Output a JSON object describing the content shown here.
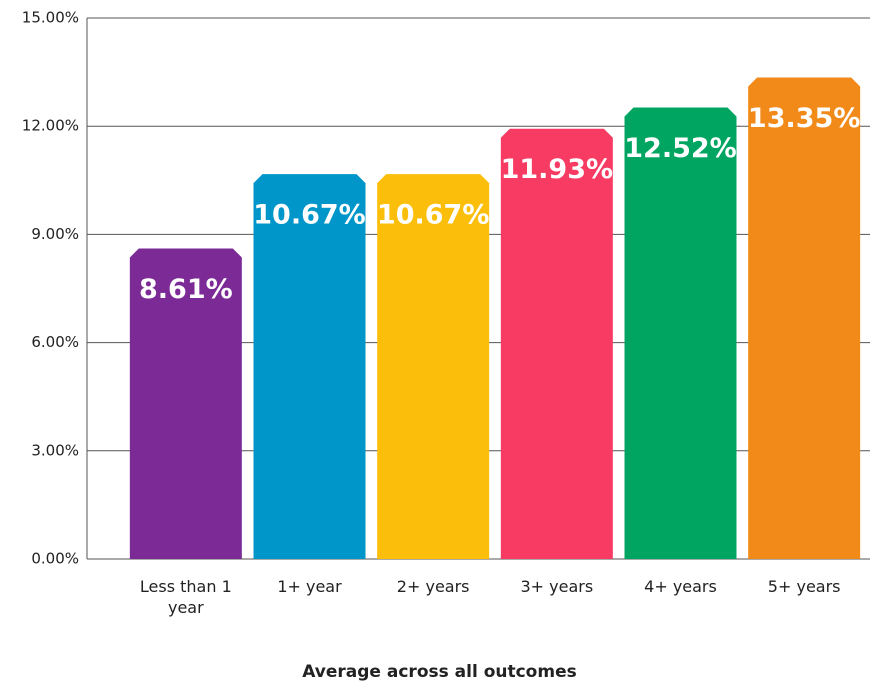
{
  "chart_data": {
    "type": "bar",
    "x_label": "Average across all outcomes",
    "categories": [
      "Less than 1 year",
      "1+ year",
      "2+ years",
      "3+ years",
      "4+ years",
      "5+ years"
    ],
    "values": [
      8.61,
      10.67,
      10.67,
      11.93,
      12.52,
      13.35
    ],
    "value_labels": [
      "8.61%",
      "10.67%",
      "10.67%",
      "11.93%",
      "12.52%",
      "13.35%"
    ],
    "colors": [
      "#7b2a96",
      "#0096c9",
      "#fbbe0b",
      "#f73b63",
      "#00a562",
      "#f28a1a"
    ],
    "ylim": [
      0,
      15
    ],
    "yticks": [
      {
        "value": 0,
        "label": "0.00%"
      },
      {
        "value": 3,
        "label": "3.00%"
      },
      {
        "value": 6,
        "label": "6.00%"
      },
      {
        "value": 9,
        "label": "9.00%"
      },
      {
        "value": 12,
        "label": "12.00%"
      },
      {
        "value": 15,
        "label": "15.00%"
      }
    ],
    "grid": true
  }
}
